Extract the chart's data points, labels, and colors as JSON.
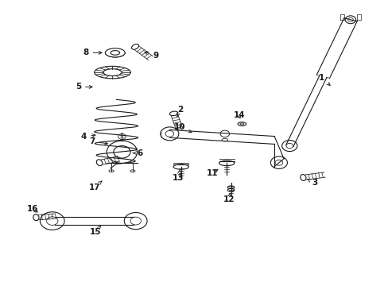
{
  "bg_color": "#ffffff",
  "fg_color": "#1a1a1a",
  "fig_width": 4.89,
  "fig_height": 3.6,
  "dpi": 100,
  "label_positions": {
    "1": [
      0.825,
      0.72,
      0.86,
      0.685
    ],
    "2": [
      0.47,
      0.61,
      0.475,
      0.58
    ],
    "3": [
      0.81,
      0.355,
      0.79,
      0.37
    ],
    "4": [
      0.21,
      0.52,
      0.245,
      0.528
    ],
    "5": [
      0.195,
      0.7,
      0.23,
      0.7
    ],
    "6": [
      0.355,
      0.462,
      0.33,
      0.467
    ],
    "7": [
      0.232,
      0.505,
      0.252,
      0.493
    ],
    "8": [
      0.215,
      0.81,
      0.253,
      0.81
    ],
    "9": [
      0.39,
      0.808,
      0.368,
      0.818
    ],
    "10": [
      0.462,
      0.558,
      0.484,
      0.543
    ],
    "11": [
      0.548,
      0.393,
      0.558,
      0.412
    ],
    "12": [
      0.59,
      0.298,
      0.592,
      0.322
    ],
    "13": [
      0.462,
      0.375,
      0.462,
      0.398
    ],
    "14": [
      0.617,
      0.598,
      0.616,
      0.58
    ],
    "15": [
      0.238,
      0.182,
      0.252,
      0.205
    ],
    "16": [
      0.075,
      0.262,
      0.098,
      0.25
    ],
    "17": [
      0.238,
      0.342,
      0.252,
      0.363
    ]
  }
}
